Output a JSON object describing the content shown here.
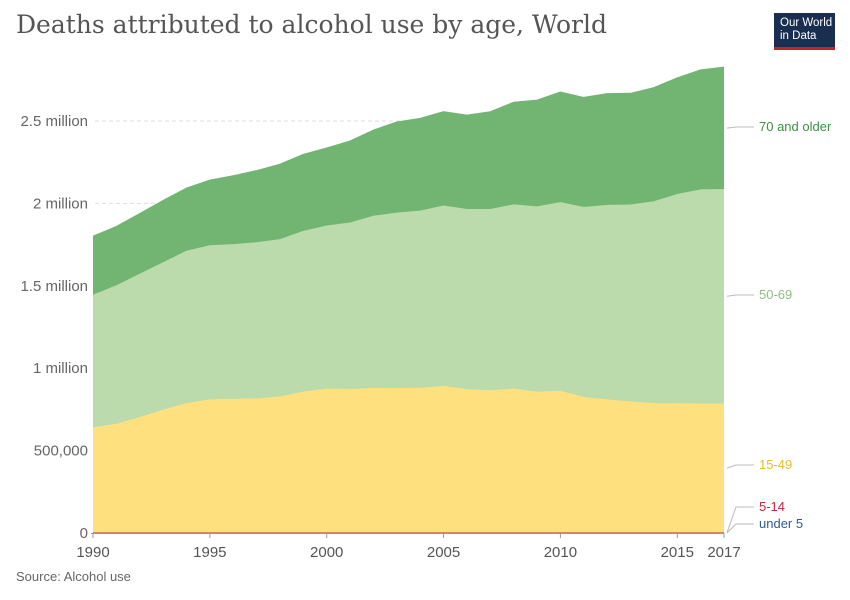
{
  "header": {
    "title": "Deaths attributed to alcohol use by age, World",
    "logo_line1": "Our World",
    "logo_line2": "in Data"
  },
  "footer": {
    "source": "Source: Alcohol use"
  },
  "chart_data": {
    "type": "area",
    "stacked": true,
    "title": "Deaths attributed to alcohol use by age, World",
    "xlabel": "",
    "ylabel": "",
    "xlim": [
      1990,
      2017
    ],
    "ylim": [
      0,
      2800000
    ],
    "y_ticks": [
      {
        "value": 0,
        "label": "0"
      },
      {
        "value": 500000,
        "label": "500,000"
      },
      {
        "value": 1000000,
        "label": "1 million"
      },
      {
        "value": 1500000,
        "label": "1.5 million"
      },
      {
        "value": 2000000,
        "label": "2 million"
      },
      {
        "value": 2500000,
        "label": "2.5 million"
      }
    ],
    "x_ticks": [
      "1990",
      "1995",
      "2000",
      "2005",
      "2010",
      "2015",
      "2017"
    ],
    "grid": "horizontal dashed",
    "legend": "right, inline labels",
    "x": [
      1990,
      1991,
      1992,
      1993,
      1994,
      1995,
      1996,
      1997,
      1998,
      1999,
      2000,
      2001,
      2002,
      2003,
      2004,
      2005,
      2006,
      2007,
      2008,
      2009,
      2010,
      2011,
      2012,
      2013,
      2014,
      2015,
      2016,
      2017
    ],
    "series": [
      {
        "name": "under 5",
        "color": "#2c5d8f",
        "values": [
          1000,
          1000,
          1000,
          1000,
          1000,
          1000,
          1000,
          1000,
          1000,
          1000,
          1000,
          1000,
          1000,
          1000,
          1000,
          1000,
          1000,
          1000,
          1000,
          1000,
          1000,
          1000,
          1000,
          1000,
          1000,
          1000,
          1000,
          1000
        ]
      },
      {
        "name": "5-14",
        "color": "#c5283a",
        "values": [
          2000,
          2000,
          2000,
          2000,
          2000,
          2000,
          2000,
          2000,
          2000,
          2000,
          2000,
          2000,
          2000,
          2000,
          2000,
          2000,
          2000,
          2000,
          2000,
          2000,
          2000,
          2000,
          2000,
          2000,
          2000,
          2000,
          2000,
          2000
        ]
      },
      {
        "name": "15-49",
        "color": "#ffe07f",
        "values": [
          637000,
          660000,
          700000,
          745000,
          785000,
          808000,
          812000,
          813000,
          825000,
          855000,
          873000,
          871000,
          877000,
          876000,
          878000,
          889000,
          870000,
          863000,
          873000,
          854000,
          860000,
          822000,
          808000,
          795000,
          785000,
          784000,
          782000,
          782000
        ]
      },
      {
        "name": "50-69",
        "color": "#bcdbac",
        "values": [
          806000,
          840000,
          870000,
          895000,
          925000,
          935000,
          938000,
          948000,
          955000,
          975000,
          990000,
          1010000,
          1045000,
          1065000,
          1075000,
          1095000,
          1093000,
          1100000,
          1118000,
          1125000,
          1145000,
          1153000,
          1180000,
          1195000,
          1225000,
          1270000,
          1300000,
          1302000
        ]
      },
      {
        "name": "70 and older",
        "color": "#72b573",
        "values": [
          355000,
          357000,
          365000,
          375000,
          380000,
          395000,
          415000,
          435000,
          455000,
          465000,
          470000,
          495000,
          520000,
          550000,
          560000,
          570000,
          570000,
          590000,
          620000,
          645000,
          668000,
          665000,
          675000,
          675000,
          690000,
          705000,
          725000,
          740000
        ]
      }
    ]
  }
}
